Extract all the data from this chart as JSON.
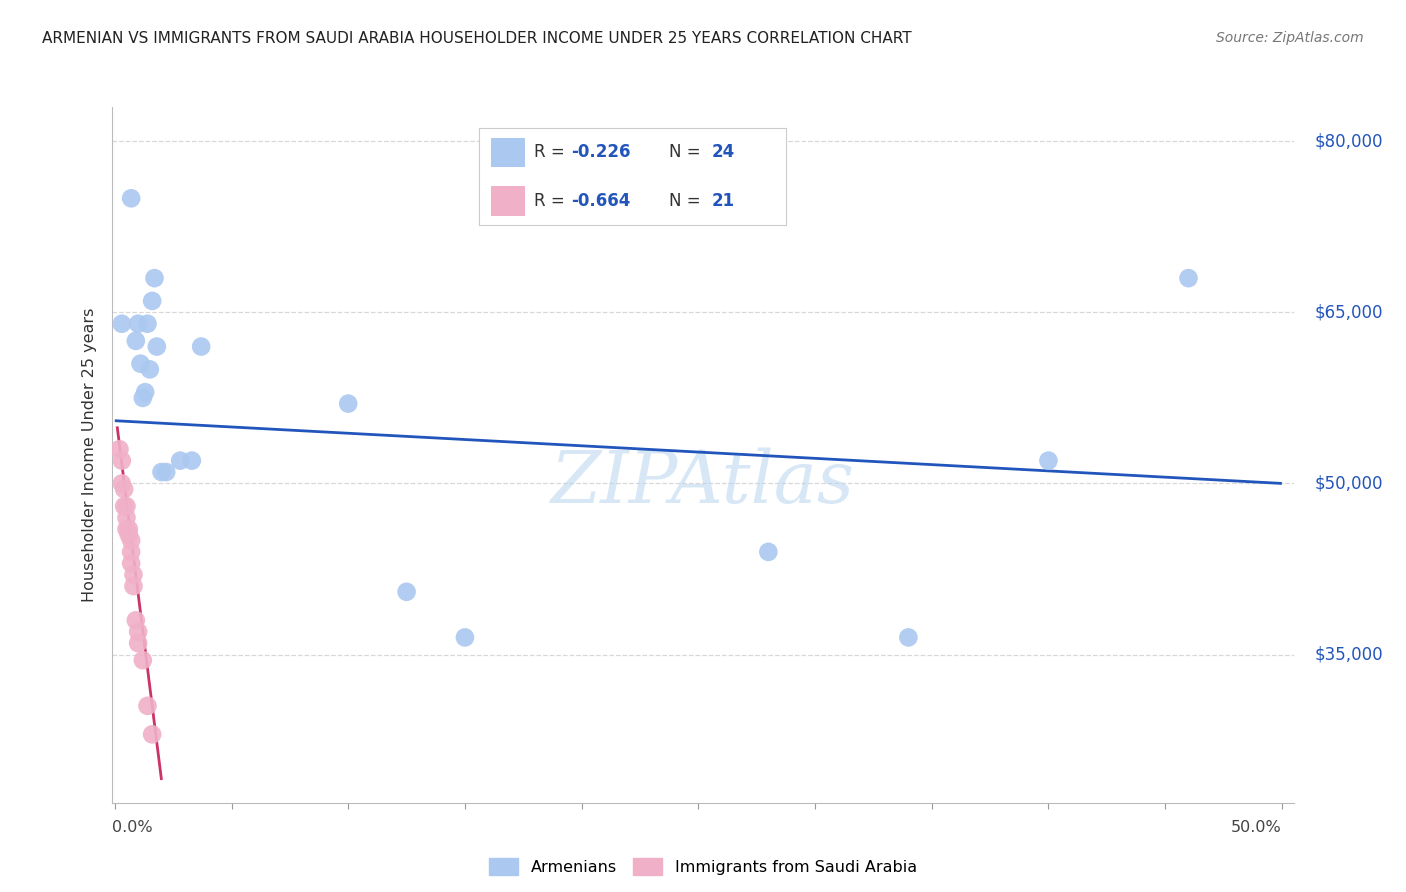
{
  "title": "ARMENIAN VS IMMIGRANTS FROM SAUDI ARABIA HOUSEHOLDER INCOME UNDER 25 YEARS CORRELATION CHART",
  "source": "Source: ZipAtlas.com",
  "ylabel": "Householder Income Under 25 years",
  "watermark": "ZIPAtlas",
  "ytick_labels": [
    "$35,000",
    "$50,000",
    "$65,000",
    "$80,000"
  ],
  "ytick_values": [
    35000,
    50000,
    65000,
    80000
  ],
  "ymin": 22000,
  "ymax": 83000,
  "xmin": -0.001,
  "xmax": 0.505,
  "blue_color": "#aac8f0",
  "pink_color": "#f0b0c8",
  "blue_line_color": "#2255bb",
  "pink_line_color": "#cc3366",
  "right_label_color": "#2255bb",
  "grid_color": "#d8d8d8",
  "armenians_x": [
    0.003,
    0.007,
    0.009,
    0.01,
    0.011,
    0.012,
    0.013,
    0.014,
    0.015,
    0.016,
    0.017,
    0.018,
    0.02,
    0.022,
    0.028,
    0.033,
    0.037,
    0.1,
    0.125,
    0.15,
    0.28,
    0.34,
    0.4,
    0.46
  ],
  "armenians_y": [
    64000,
    75000,
    62500,
    64000,
    60500,
    57500,
    58000,
    64000,
    60000,
    66000,
    68000,
    62000,
    51000,
    51000,
    52000,
    52000,
    62000,
    57000,
    40500,
    36500,
    44000,
    36500,
    52000,
    68000
  ],
  "saudi_x": [
    0.002,
    0.003,
    0.003,
    0.004,
    0.004,
    0.005,
    0.005,
    0.005,
    0.006,
    0.006,
    0.007,
    0.007,
    0.007,
    0.008,
    0.008,
    0.009,
    0.01,
    0.01,
    0.012,
    0.014,
    0.016
  ],
  "saudi_y": [
    53000,
    52000,
    50000,
    49500,
    48000,
    48000,
    47000,
    46000,
    46000,
    45500,
    45000,
    44000,
    43000,
    42000,
    41000,
    38000,
    37000,
    36000,
    34500,
    30500,
    28000
  ],
  "blue_trendline_x": [
    0.0,
    0.5
  ],
  "blue_trendline_y": [
    55500,
    50000
  ],
  "pink_trendline_x": [
    0.001,
    0.02
  ],
  "pink_trendline_y": [
    55000,
    24000
  ],
  "legend_R1": "-0.226",
  "legend_N1": "24",
  "legend_R2": "-0.664",
  "legend_N2": "21",
  "dot_size": 180
}
